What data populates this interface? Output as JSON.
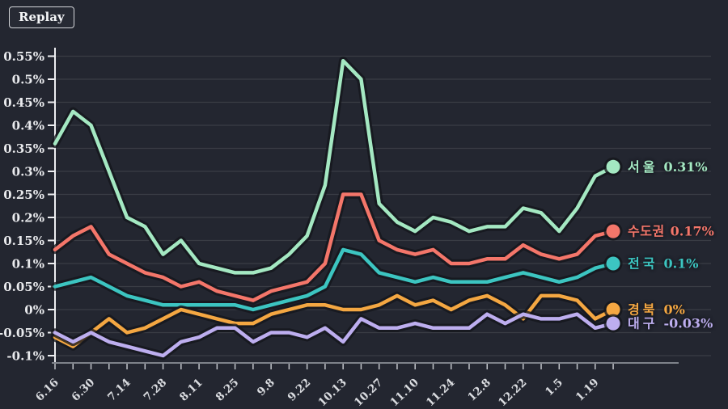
{
  "replay_button": {
    "label": "Replay"
  },
  "colors": {
    "background": "#232630",
    "grid": "#3a3d45",
    "halo": "#14161c",
    "y_axis": "#edeef1",
    "x_axis": "#7e828a",
    "x_tick": "#c2c5cb",
    "y_label": "#e9eaed",
    "x_label": "#d9dbdf"
  },
  "chart_data": {
    "type": "line",
    "title": "",
    "xlabel": "",
    "ylabel": "",
    "ylim": [
      -0.1,
      0.55
    ],
    "grid": true,
    "legend_position": "right-of-line-end",
    "n_points": 32,
    "x_label_every": 2,
    "x_labels": [
      "6.16",
      "6.30",
      "7.14",
      "7.28",
      "8.11",
      "8.25",
      "9.8",
      "9.22",
      "10.13",
      "10.27",
      "11.10",
      "11.24",
      "12.8",
      "12.22",
      "1.5",
      "1.19"
    ],
    "y_tick_labels": [
      "0.55%",
      "0.5%",
      "0.45%",
      "0.4%",
      "0.35%",
      "0.3%",
      "0.25%",
      "0.2%",
      "0.15%",
      "0.1%",
      "0.05%",
      "0%",
      "-0.05%",
      "-0.1%"
    ],
    "series": [
      {
        "id": "seoul",
        "name": "서울",
        "end_label": "0.31%",
        "color": "#a4e8c2",
        "values": [
          0.36,
          0.43,
          0.4,
          0.3,
          0.2,
          0.18,
          0.12,
          0.15,
          0.1,
          0.09,
          0.08,
          0.08,
          0.09,
          0.12,
          0.16,
          0.27,
          0.54,
          0.5,
          0.23,
          0.19,
          0.17,
          0.2,
          0.19,
          0.17,
          0.18,
          0.18,
          0.22,
          0.21,
          0.17,
          0.22,
          0.29,
          0.31
        ]
      },
      {
        "id": "metro",
        "name": "수도권",
        "end_label": "0.17%",
        "color": "#f4766a",
        "values": [
          0.13,
          0.16,
          0.18,
          0.12,
          0.1,
          0.08,
          0.07,
          0.05,
          0.06,
          0.04,
          0.03,
          0.02,
          0.04,
          0.05,
          0.06,
          0.1,
          0.25,
          0.25,
          0.15,
          0.13,
          0.12,
          0.13,
          0.1,
          0.1,
          0.11,
          0.11,
          0.14,
          0.12,
          0.11,
          0.12,
          0.16,
          0.17
        ]
      },
      {
        "id": "national",
        "name": "전국",
        "end_label": "0.1%",
        "color": "#3cc5c1",
        "values": [
          0.05,
          0.06,
          0.07,
          0.05,
          0.03,
          0.02,
          0.01,
          0.01,
          0.01,
          0.01,
          0.01,
          0.0,
          0.01,
          0.02,
          0.03,
          0.05,
          0.13,
          0.12,
          0.08,
          0.07,
          0.06,
          0.07,
          0.06,
          0.06,
          0.06,
          0.07,
          0.08,
          0.07,
          0.06,
          0.07,
          0.09,
          0.1
        ]
      },
      {
        "id": "gyeongbuk",
        "name": "경북",
        "end_label": "0%",
        "color": "#f4a742",
        "values": [
          -0.06,
          -0.08,
          -0.05,
          -0.02,
          -0.05,
          -0.04,
          -0.02,
          0.0,
          -0.01,
          -0.02,
          -0.03,
          -0.03,
          -0.01,
          0.0,
          0.01,
          0.01,
          0.0,
          0.0,
          0.01,
          0.03,
          0.01,
          0.02,
          0.0,
          0.02,
          0.03,
          0.01,
          -0.02,
          0.03,
          0.03,
          0.02,
          -0.02,
          0.0
        ]
      },
      {
        "id": "daegu",
        "name": "대구",
        "end_label": "-0.03%",
        "color": "#bdaeef",
        "values": [
          -0.05,
          -0.07,
          -0.05,
          -0.07,
          -0.08,
          -0.09,
          -0.1,
          -0.07,
          -0.06,
          -0.04,
          -0.04,
          -0.07,
          -0.05,
          -0.05,
          -0.06,
          -0.04,
          -0.07,
          -0.02,
          -0.04,
          -0.04,
          -0.03,
          -0.04,
          -0.04,
          -0.04,
          -0.01,
          -0.03,
          -0.01,
          -0.02,
          -0.02,
          -0.01,
          -0.04,
          -0.03
        ]
      }
    ]
  }
}
